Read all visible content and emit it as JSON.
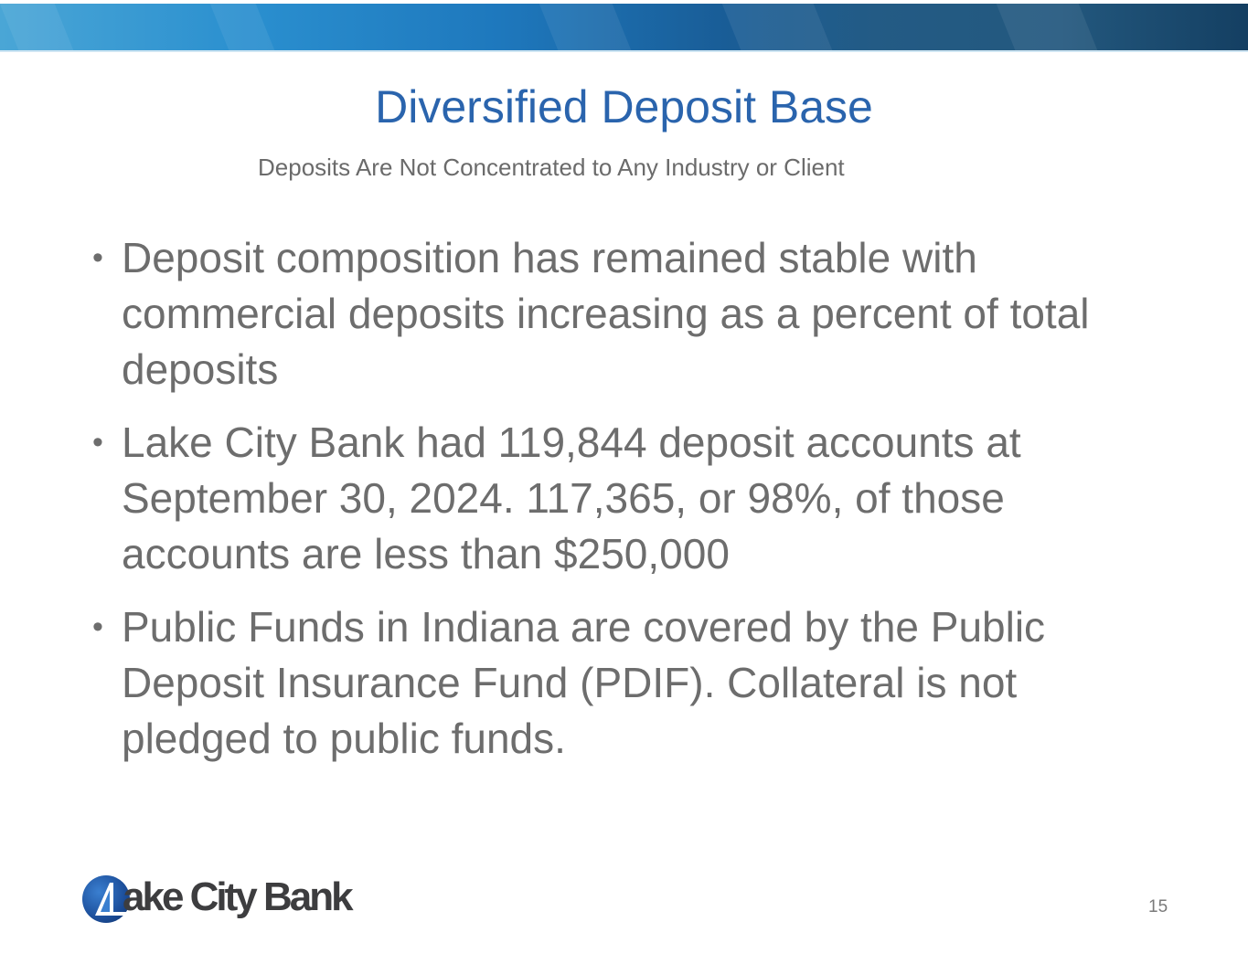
{
  "slide": {
    "title": "Diversified Deposit Base",
    "subtitle": "Deposits Are Not Concentrated to Any Industry or Client",
    "bullets": [
      "Deposit composition has remained stable with commercial deposits increasing as a percent of total deposits",
      "Lake City Bank had 119,844 deposit accounts at September 30, 2024. 117,365, or 98%, of those accounts are less than $250,000",
      "Public Funds in Indiana are covered by the Public Deposit Insurance Fund (PDIF). Collateral is not pledged to public funds."
    ],
    "bullet_glyph": "•",
    "page_number": "15"
  },
  "logo": {
    "text": "Lake City Bank",
    "word_visible": "ake City Bank"
  },
  "colors": {
    "title": "#2a64ad",
    "body": "#6d6d6d",
    "banner_start": "#4aa6d6",
    "banner_end": "#143f62"
  }
}
